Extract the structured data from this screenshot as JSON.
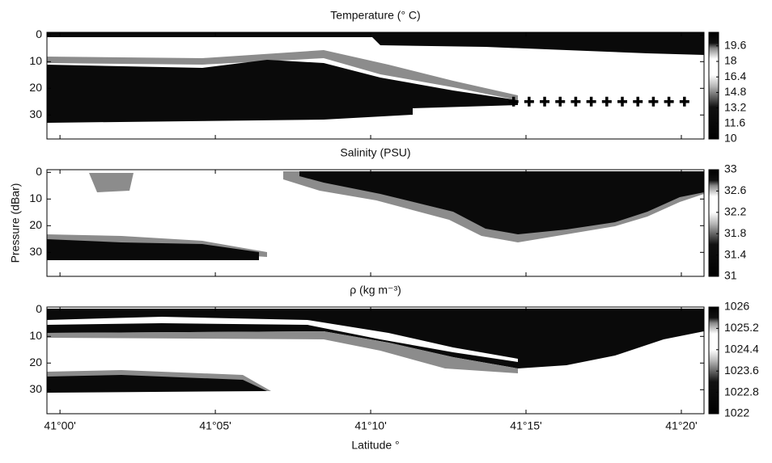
{
  "chart_data": [
    {
      "type": "heatmap",
      "title": "Temperature (° C)",
      "xlim": [
        -0.42,
        20.73
      ],
      "xticks": [
        0,
        5,
        10,
        15,
        20
      ],
      "ylim": [
        -1,
        39
      ],
      "yticks": [
        0,
        10,
        20,
        30
      ],
      "clim": [
        10,
        21
      ],
      "cticks": [
        10,
        11.6,
        13.2,
        14.8,
        16.4,
        18,
        19.6
      ],
      "series": [
        {
          "x": [
            14.6,
            15.1,
            15.6,
            16.1,
            16.6,
            17.1,
            17.6,
            18.1,
            18.6,
            19.1,
            19.6,
            20.1
          ],
          "values": [
            25,
            25,
            25,
            25,
            25,
            25,
            25,
            25,
            25,
            25,
            25,
            25
          ],
          "color": "#000000"
        }
      ]
    },
    {
      "type": "heatmap",
      "title": "Salinity (PSU)",
      "ylabel": "Pressure (dBar)",
      "xlim": [
        -0.42,
        20.73
      ],
      "xticks": [
        0,
        5,
        10,
        15,
        20
      ],
      "ylim": [
        -1,
        39
      ],
      "yticks": [
        0,
        10,
        20,
        30
      ],
      "clim": [
        31,
        33
      ],
      "cticks": [
        31,
        31.4,
        31.8,
        32.2,
        32.6,
        33
      ]
    },
    {
      "type": "heatmap",
      "title": "ρ (kg m⁻³)",
      "xlabel": "Latitude °",
      "xlim": [
        -0.42,
        20.73
      ],
      "xticks": [
        {
          "value": 0,
          "label": "41°00'"
        },
        {
          "value": 5,
          "label": "41°05'"
        },
        {
          "value": 10,
          "label": "41°10'"
        },
        {
          "value": 15,
          "label": "41°15'"
        },
        {
          "value": 20,
          "label": "41°20'"
        }
      ],
      "ylim": [
        -1,
        39
      ],
      "yticks": [
        0,
        10,
        20,
        30
      ],
      "clim": [
        1022,
        1026
      ],
      "cticks": [
        1022,
        1022.8,
        1023.6,
        1024.4,
        1025.2,
        1026
      ]
    }
  ]
}
